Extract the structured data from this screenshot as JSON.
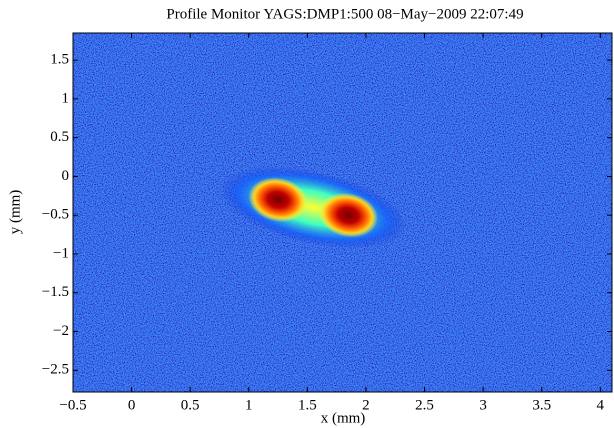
{
  "chart_data": {
    "type": "image",
    "title": "Profile Monitor YAGS:DMP1:500 08−May−2009 22:07:49",
    "x_label": "x  (mm)",
    "y_label": "y (mm)",
    "xlim": [
      -0.5,
      4.1
    ],
    "ylim": [
      -2.78,
      1.85
    ],
    "xticks": [
      {
        "value": -0.5,
        "label": "−0.5"
      },
      0,
      0.5,
      1,
      1.5,
      2,
      2.5,
      3,
      3.5,
      4
    ],
    "yticks": [
      1.5,
      1,
      0.5,
      0,
      {
        "value": -0.5,
        "label": "−0.5"
      },
      {
        "value": -1,
        "label": "−1"
      },
      {
        "value": -1.5,
        "label": "−1.5"
      },
      {
        "value": -2,
        "label": "−2"
      },
      {
        "value": -2.5,
        "label": "−2.5"
      }
    ],
    "spots": [
      {
        "x": 1.25,
        "y": -0.3
      },
      {
        "x": 1.85,
        "y": -0.5
      }
    ]
  }
}
